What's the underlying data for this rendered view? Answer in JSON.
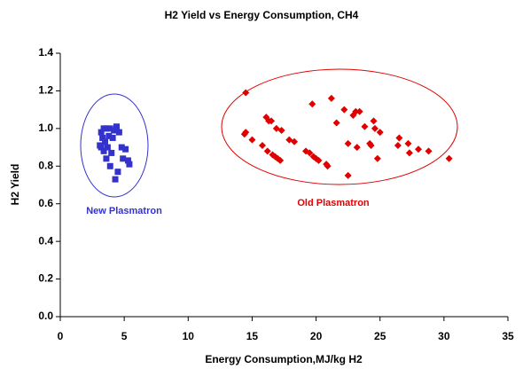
{
  "chart_data": {
    "type": "scatter",
    "title": "H2 Yield vs Energy Consumption, CH4",
    "x_label": "Energy Consumption,MJ/kg H2",
    "y_label": "H2 Yield",
    "xlim": [
      0,
      35
    ],
    "xticks": [
      0,
      5,
      10,
      15,
      20,
      25,
      30,
      35
    ],
    "ylim": [
      0,
      1.4
    ],
    "yticks": [
      {
        "value": 0,
        "label": "0.0"
      },
      {
        "value": 0.2,
        "label": "0.2"
      },
      {
        "value": 0.4,
        "label": "0.4"
      },
      {
        "value": 0.6,
        "label": "0.6"
      },
      {
        "value": 0.8,
        "label": "0.8"
      },
      {
        "value": 1.0,
        "label": "1.0"
      },
      {
        "value": 1.2,
        "label": "1.2"
      },
      {
        "value": 1.4,
        "label": "1.4"
      }
    ],
    "grid": false,
    "series": [
      {
        "name": "New Plasmatron",
        "color": "#3333cc",
        "marker": "square",
        "x": [
          3.2,
          3.4,
          3.6,
          3.9,
          4.2,
          3.3,
          3.5,
          3.8,
          4.1,
          3.2,
          3.4,
          3.7,
          4.0,
          3.6,
          3.9,
          4.4,
          4.6,
          4.8,
          4.9,
          5.3,
          5.4,
          4.5,
          4.3,
          5.1,
          3.1
        ],
        "values": [
          0.98,
          1.0,
          1.0,
          1.0,
          0.99,
          0.95,
          0.93,
          0.96,
          0.95,
          0.9,
          0.88,
          0.9,
          0.87,
          0.84,
          0.8,
          1.01,
          0.98,
          0.9,
          0.84,
          0.83,
          0.81,
          0.77,
          0.73,
          0.89,
          0.91
        ]
      },
      {
        "name": "Old Plasmatron",
        "color": "#e00000",
        "marker": "diamond",
        "x": [
          14.5,
          14.5,
          14.4,
          15.0,
          15.8,
          16.1,
          16.3,
          16.5,
          16.2,
          16.6,
          16.8,
          16.9,
          17.3,
          17.2,
          17.0,
          17.9,
          18.3,
          19.2,
          19.5,
          19.8,
          20.2,
          20.0,
          19.7,
          20.8,
          20.9,
          21.2,
          21.6,
          22.2,
          22.5,
          22.5,
          22.9,
          23.1,
          23.4,
          23.2,
          23.8,
          24.2,
          24.3,
          24.5,
          24.6,
          25.0,
          24.8,
          26.5,
          26.4,
          27.3,
          27.2,
          28.0,
          28.8,
          30.4
        ],
        "values": [
          1.19,
          0.98,
          0.97,
          0.94,
          0.91,
          1.06,
          1.04,
          1.04,
          0.88,
          0.86,
          0.85,
          1.0,
          0.99,
          0.83,
          0.84,
          0.94,
          0.93,
          0.88,
          0.87,
          0.85,
          0.83,
          0.84,
          1.13,
          0.81,
          0.8,
          1.16,
          1.03,
          1.1,
          0.92,
          0.75,
          1.07,
          1.09,
          1.09,
          0.9,
          1.01,
          0.92,
          0.91,
          1.04,
          1.0,
          0.98,
          0.84,
          0.95,
          0.91,
          0.87,
          0.92,
          0.89,
          0.88,
          0.84
        ]
      }
    ]
  }
}
